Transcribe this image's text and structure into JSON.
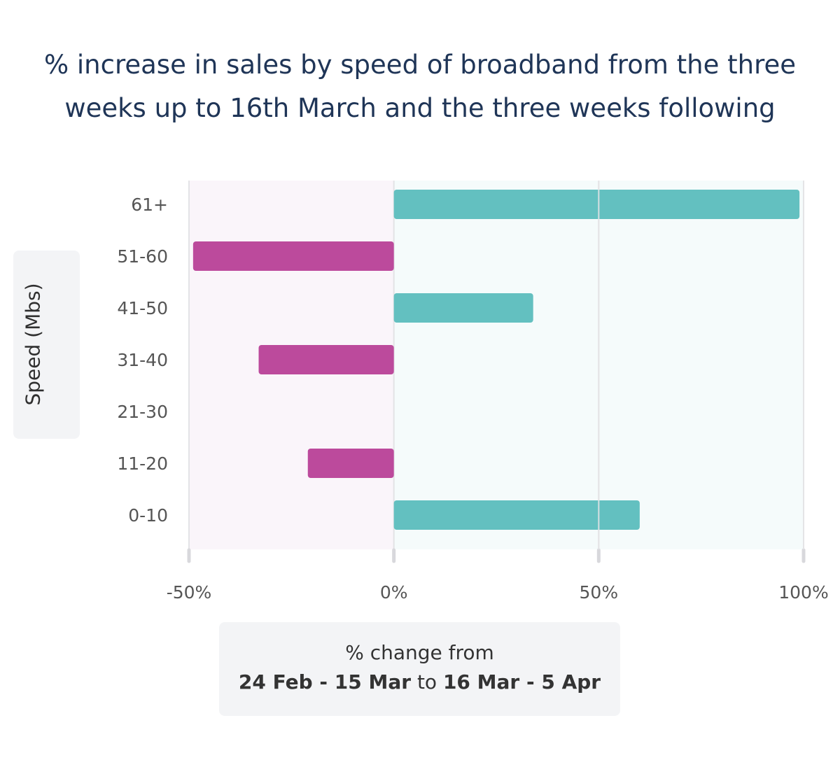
{
  "title_lines": [
    "% increase in sales by speed of broadband from the three",
    "weeks up to 16th March and the three weeks following"
  ],
  "ylabel": "Speed (Mbs)",
  "xlabel": {
    "line1": "% change from",
    "range_from": "24 Feb - 15 Mar",
    "connector": "to",
    "range_to": "16 Mar - 5 Apr"
  },
  "colors": {
    "positive": "#63c0c0",
    "negative": "#bc4a9c",
    "negative_band": "#faf5fa",
    "positive_band": "#f5fbfb",
    "title": "#1f3557",
    "tick_text": "#555555"
  },
  "chart_data": {
    "type": "bar",
    "orientation": "horizontal",
    "title": "% increase in sales by speed of broadband from the three weeks up to 16th March and the three weeks following",
    "ylabel": "Speed (Mbs)",
    "xlabel": "% change from 24 Feb - 15 Mar to 16 Mar - 5 Apr",
    "categories": [
      "61+",
      "51-60",
      "41-50",
      "31-40",
      "21-30",
      "11-20",
      "0-10"
    ],
    "values": [
      99,
      -49,
      34,
      -33,
      0,
      -21,
      60
    ],
    "xlim": [
      -50,
      100
    ],
    "xticks": [
      -50,
      0,
      50,
      100
    ],
    "xtick_labels": [
      "-50%",
      "0%",
      "50%",
      "100%"
    ],
    "grid": true
  }
}
